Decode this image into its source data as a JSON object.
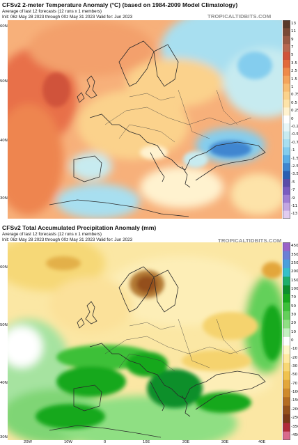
{
  "panels": [
    {
      "title": "CFSv2 2-meter Temperature Anomaly (°C) (based on 1984-2009 Model Climatology)",
      "subtitle1": "Average of last 12 forecasts (12 runs x 1 members)",
      "subtitle2": "Init: 06z May 28 2023 through 00z May 31 2023          Valid for: Jun 2023",
      "brand": "TROPICALTIDBITS.COM",
      "colorbar_labels": [
        "13",
        "11",
        "9",
        "7",
        "5",
        "3.5",
        "2.5",
        "1.5",
        "1",
        "0.75",
        "0.5",
        "0.25",
        "0",
        "-0.25",
        "-0.5",
        "-0.75",
        "-1",
        "-1.5",
        "-2.5",
        "-3.5",
        "-5",
        "-7",
        "-9",
        "-11",
        "-13"
      ],
      "colorbar_colors": [
        "#5a3a2a",
        "#7a4a36",
        "#9a5a44",
        "#b86850",
        "#d0533a",
        "#e26a3a",
        "#ee8a4a",
        "#f4a45c",
        "#f8bd73",
        "#fbd28c",
        "#fde3a9",
        "#fff2cf",
        "#ffffff",
        "#e7f6f7",
        "#c7ebf0",
        "#a8dff0",
        "#84cdee",
        "#5aaee6",
        "#3f86d0",
        "#2b5fb2",
        "#5b4ca8",
        "#7b5cc0",
        "#a07ed4",
        "#c3a6e2",
        "#e1ccef"
      ],
      "lat_labels": [
        "60N",
        "50N",
        "40N",
        "30N"
      ],
      "lon_labels": []
    },
    {
      "title": "CFSv2 Total Accumulated Precipitation Anomaly (mm)",
      "subtitle1": "Average of last 12 forecasts (12 runs x 1 members)",
      "subtitle2": "Init: 06z May 28 2023 through 00z May 31 2023          Valid for: Jun 2023",
      "brand": "TROPICALTIDBITS.COM",
      "colorbar_labels": [
        "450",
        "350",
        "250",
        "200",
        "150",
        "100",
        "70",
        "50",
        "30",
        "20",
        "10",
        "0",
        "-10",
        "-20",
        "-30",
        "-50",
        "-70",
        "-100",
        "-150",
        "-200",
        "-250",
        "-350",
        "-450"
      ],
      "colorbar_colors": [
        "#9a62c8",
        "#6c7fd6",
        "#4aa0dc",
        "#36c0c8",
        "#1fae6a",
        "#0c8f2c",
        "#17a81e",
        "#3cc039",
        "#63d05a",
        "#8fdf83",
        "#c3efc0",
        "#ffffff",
        "#fff6c8",
        "#ffe9a0",
        "#f8d774",
        "#f0c24e",
        "#e3a63a",
        "#cf8a2c",
        "#b46c22",
        "#94501b",
        "#7a3818",
        "#b02b3a",
        "#d96a8c"
      ],
      "lat_labels": [
        "60N",
        "50N",
        "40N",
        "30N"
      ],
      "lon_labels": [
        "20W",
        "10W",
        "0",
        "10E",
        "20E",
        "30E",
        "40E"
      ]
    }
  ]
}
